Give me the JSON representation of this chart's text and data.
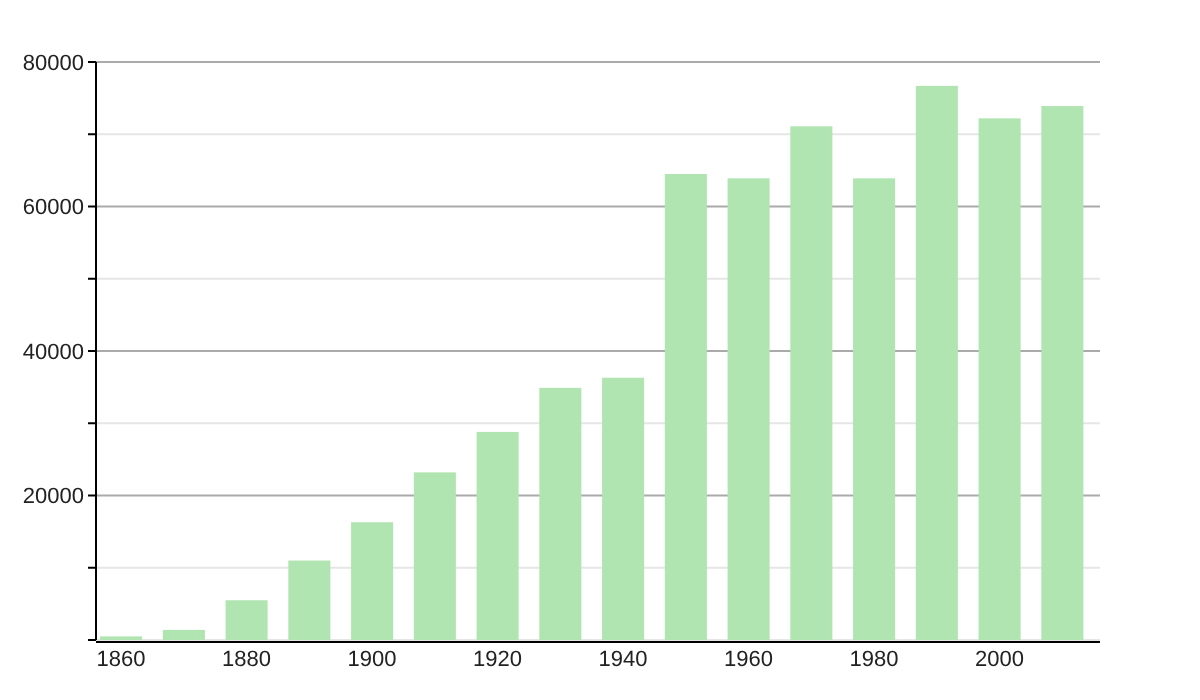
{
  "chart_data": {
    "type": "bar",
    "x": [
      1860,
      1870,
      1880,
      1890,
      1900,
      1910,
      1920,
      1930,
      1940,
      1950,
      1960,
      1970,
      1980,
      1990,
      2000,
      2010
    ],
    "values": [
      500,
      1400,
      5500,
      11000,
      16300,
      23200,
      28800,
      34900,
      36300,
      64500,
      63900,
      71100,
      63900,
      76700,
      72200,
      73900
    ],
    "color": "#b0e4b0",
    "xlim": [
      1856,
      2016
    ],
    "xticks": [
      1860,
      1880,
      1900,
      1920,
      1940,
      1960,
      1980,
      2000
    ],
    "ylim": [
      0,
      80000
    ],
    "yticks": [
      {
        "value": 0,
        "label": null
      },
      {
        "value": 10000,
        "label": null
      },
      20000,
      {
        "value": 30000,
        "label": null
      },
      40000,
      {
        "value": 50000,
        "label": null
      },
      60000,
      {
        "value": 70000,
        "label": null
      },
      80000
    ],
    "grid": true
  }
}
